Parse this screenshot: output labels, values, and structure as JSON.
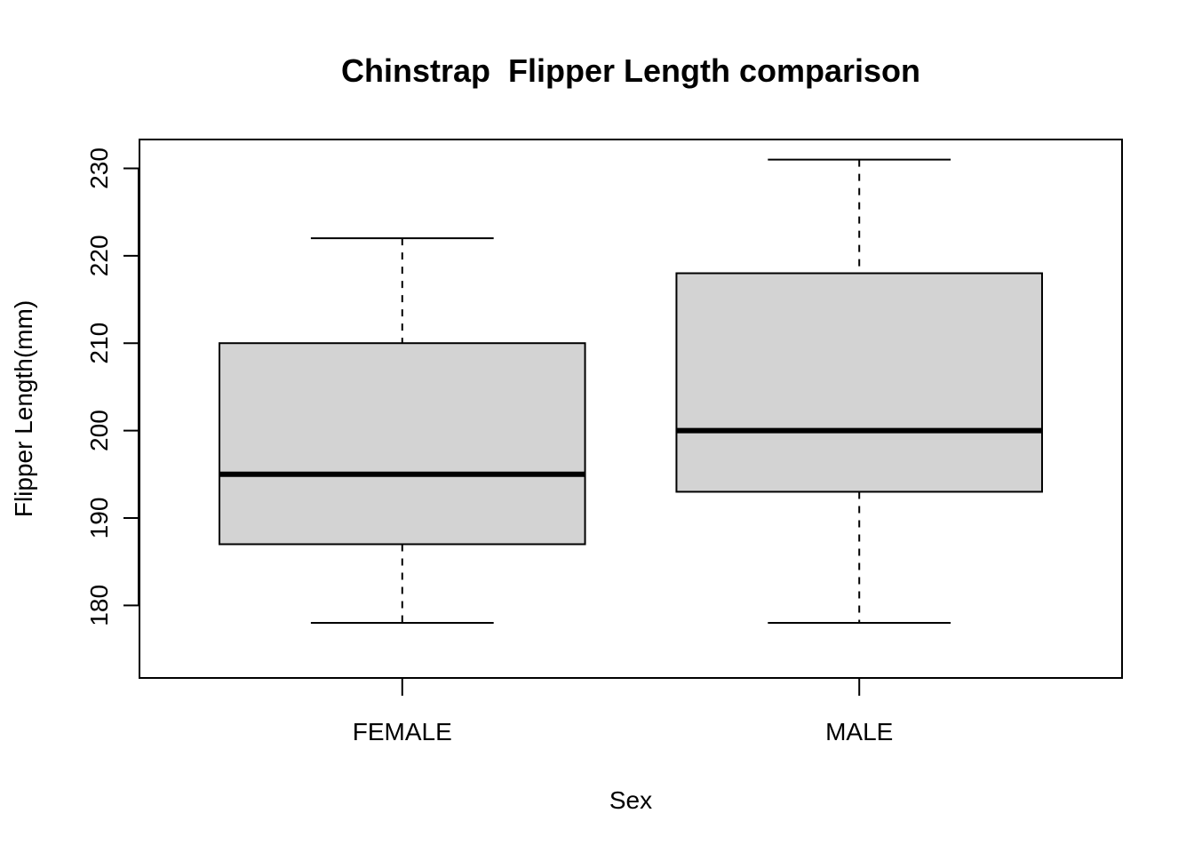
{
  "chart_data": {
    "type": "boxplot",
    "title": "Chinstrap  Flipper Length comparison",
    "xlabel": "Sex",
    "ylabel": "Flipper Length(mm)",
    "ylim": [
      171.7,
      233.3
    ],
    "yticks": [
      180,
      190,
      200,
      210,
      220,
      230
    ],
    "grid": false,
    "categories": [
      "FEMALE",
      "MALE"
    ],
    "boxes": [
      {
        "category": "FEMALE",
        "min": 178,
        "q1": 187,
        "median": 195,
        "q3": 210,
        "max": 222
      },
      {
        "category": "MALE",
        "min": 178,
        "q1": 193,
        "median": 200,
        "q3": 218,
        "max": 231
      }
    ],
    "colors": {
      "box_fill": "#d3d3d3",
      "stroke": "#000000"
    }
  }
}
